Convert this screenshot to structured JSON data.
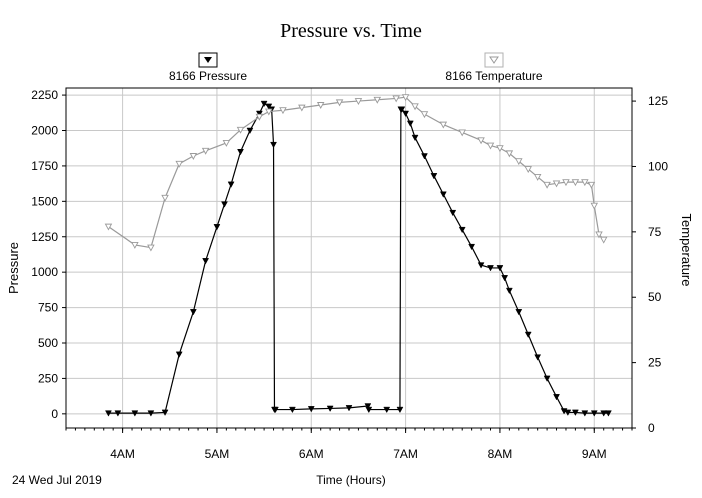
{
  "chart_data": {
    "type": "line",
    "title": "Pressure vs. Time",
    "xlabel": "Time (Hours)",
    "ylabel": "Pressure",
    "y2label": "Temperature",
    "date_label": "24 Wed Jul 2019",
    "x_ticks": [
      "4AM",
      "5AM",
      "6AM",
      "7AM",
      "8AM",
      "9AM"
    ],
    "x_range": [
      3.4,
      9.4
    ],
    "ylim": [
      -100,
      2300
    ],
    "y_ticks": [
      0,
      250,
      500,
      750,
      1000,
      1250,
      1500,
      1750,
      2000,
      2250
    ],
    "y2lim": [
      0,
      130
    ],
    "y2_ticks": [
      0,
      25,
      50,
      75,
      100,
      125
    ],
    "grid": true,
    "legend_placement": "top",
    "series": [
      {
        "name": "8166 Pressure",
        "axis": "left",
        "color": "#000000",
        "marker": "triangle-down-filled",
        "x": [
          3.85,
          3.95,
          4.13,
          4.3,
          4.45,
          4.6,
          4.75,
          4.88,
          5.0,
          5.08,
          5.15,
          5.25,
          5.35,
          5.45,
          5.5,
          5.55,
          5.58,
          5.6,
          5.61,
          5.62,
          5.8,
          6.0,
          6.2,
          6.4,
          6.6,
          6.61,
          6.8,
          6.94,
          6.95,
          6.96,
          7.0,
          7.05,
          7.1,
          7.2,
          7.3,
          7.4,
          7.5,
          7.6,
          7.7,
          7.8,
          7.9,
          8.0,
          8.05,
          8.1,
          8.2,
          8.3,
          8.4,
          8.5,
          8.6,
          8.68,
          8.72,
          8.8,
          8.9,
          9.0,
          9.1,
          9.15
        ],
        "y": [
          5,
          5,
          5,
          5,
          10,
          420,
          720,
          1080,
          1320,
          1480,
          1620,
          1850,
          2000,
          2120,
          2190,
          2170,
          2150,
          1900,
          30,
          30,
          30,
          35,
          38,
          42,
          55,
          30,
          30,
          30,
          2150,
          2150,
          2120,
          2050,
          1950,
          1820,
          1680,
          1550,
          1420,
          1300,
          1180,
          1050,
          1030,
          1030,
          960,
          870,
          720,
          560,
          400,
          250,
          120,
          20,
          10,
          10,
          5,
          5,
          5,
          5
        ]
      },
      {
        "name": "8166 Temperature",
        "axis": "right",
        "color": "#9a9a9a",
        "marker": "triangle-down-hollow",
        "x": [
          3.85,
          4.13,
          4.3,
          4.45,
          4.6,
          4.75,
          4.88,
          5.1,
          5.25,
          5.45,
          5.55,
          5.7,
          5.9,
          6.1,
          6.3,
          6.5,
          6.7,
          6.9,
          7.0,
          7.1,
          7.2,
          7.4,
          7.6,
          7.8,
          7.9,
          8.0,
          8.1,
          8.2,
          8.3,
          8.4,
          8.5,
          8.6,
          8.7,
          8.8,
          8.9,
          8.97,
          9.0,
          9.05,
          9.1
        ],
        "y": [
          77,
          70,
          69,
          88,
          101,
          104,
          106,
          109,
          114,
          119,
          121,
          121.5,
          122.5,
          123.5,
          124.5,
          125,
          125.5,
          126,
          126.5,
          123,
          120,
          116,
          113,
          110,
          108,
          107,
          105,
          102,
          99,
          96,
          93,
          93.5,
          94,
          94,
          94,
          93,
          85,
          74,
          72
        ]
      }
    ]
  }
}
